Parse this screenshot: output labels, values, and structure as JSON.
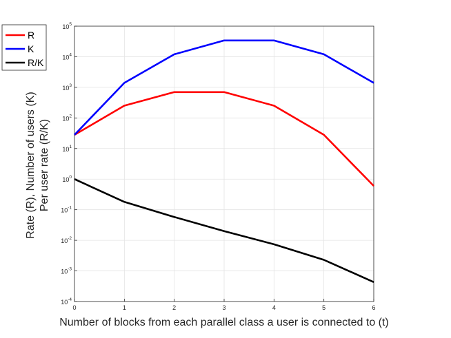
{
  "chart_data": {
    "type": "line",
    "xlabel": "Number of blocks from each parallel class a user is connected to (t)",
    "ylabel": [
      "Rate (R), Number of users (K)",
      "Per user rate (R/K)"
    ],
    "x": [
      0,
      1,
      2,
      3,
      4,
      5,
      6
    ],
    "xlim": [
      0,
      6
    ],
    "ylim": [
      0.0001,
      100000
    ],
    "yscale": "log",
    "grid": true,
    "legend_position": "top-left-outside",
    "y_ticks": [
      {
        "base": "10",
        "exp": "5",
        "value": 100000
      },
      {
        "base": "10",
        "exp": "4",
        "value": 10000
      },
      {
        "base": "10",
        "exp": "3",
        "value": 1000
      },
      {
        "base": "10",
        "exp": "2",
        "value": 100
      },
      {
        "base": "10",
        "exp": "1",
        "value": 10
      },
      {
        "base": "10",
        "exp": "0",
        "value": 1
      },
      {
        "base": "10",
        "exp": "-1",
        "value": 0.1
      },
      {
        "base": "10",
        "exp": "-2",
        "value": 0.01
      },
      {
        "base": "10",
        "exp": "-3",
        "value": 0.001
      },
      {
        "base": "10",
        "exp": "-4",
        "value": 0.0001
      }
    ],
    "series": [
      {
        "name": "R",
        "color": "#ff0000",
        "values": [
          28,
          252,
          700,
          700,
          252,
          28,
          0.6
        ]
      },
      {
        "name": "K",
        "color": "#0000ff",
        "values": [
          28,
          1400,
          12000,
          34000,
          34000,
          12000,
          1400
        ]
      },
      {
        "name": "R/K",
        "color": "#000000",
        "values": [
          1.0,
          0.18,
          0.058,
          0.02,
          0.0074,
          0.0023,
          0.00043
        ]
      }
    ]
  }
}
